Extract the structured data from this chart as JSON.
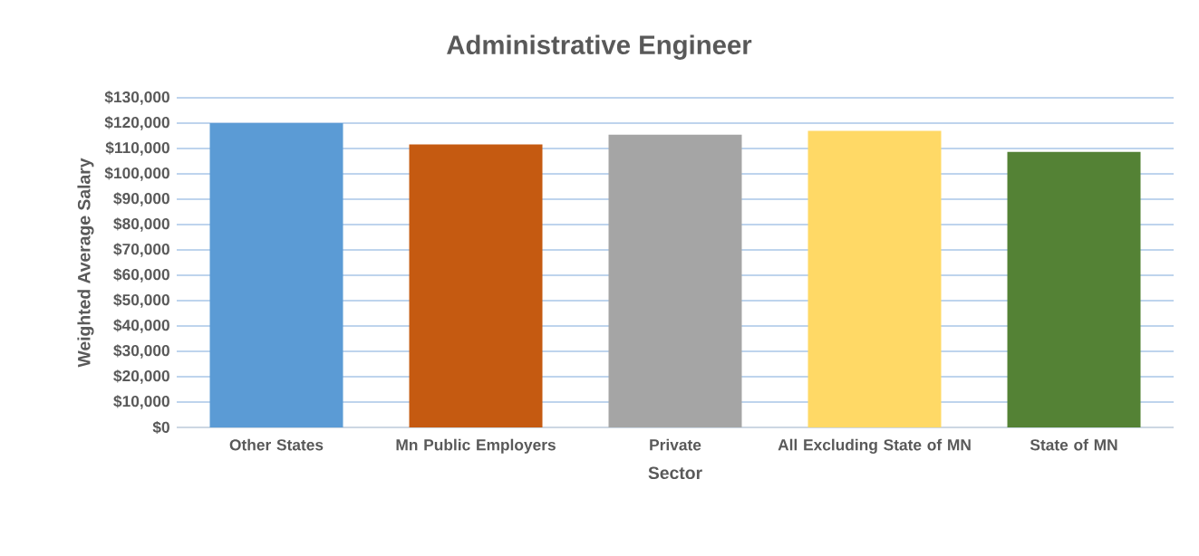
{
  "chart_data": {
    "type": "bar",
    "title": "Administrative Engineer",
    "xlabel": "Sector",
    "ylabel": "Weighted Average Salary",
    "categories": [
      "Other States",
      "Mn Public Employers",
      "Private",
      "All Excluding State of MN",
      "State of MN"
    ],
    "values": [
      120000,
      111600,
      115400,
      117000,
      108700
    ],
    "colors": [
      "#5b9bd5",
      "#c55a11",
      "#a5a5a5",
      "#ffd966",
      "#548235"
    ],
    "ylim": [
      0,
      130000
    ],
    "yticks": [
      {
        "value": 0,
        "label": "$0"
      },
      {
        "value": 10000,
        "label": "$10,000"
      },
      {
        "value": 20000,
        "label": "$20,000"
      },
      {
        "value": 30000,
        "label": "$30,000"
      },
      {
        "value": 40000,
        "label": "$40,000"
      },
      {
        "value": 50000,
        "label": "$50,000"
      },
      {
        "value": 60000,
        "label": "$60,000"
      },
      {
        "value": 70000,
        "label": "$70,000"
      },
      {
        "value": 80000,
        "label": "$80,000"
      },
      {
        "value": 90000,
        "label": "$90,000"
      },
      {
        "value": 100000,
        "label": "$100,000"
      },
      {
        "value": 110000,
        "label": "$110,000"
      },
      {
        "value": 120000,
        "label": "$120,000"
      },
      {
        "value": 130000,
        "label": "$130,000"
      }
    ],
    "grid": "y"
  }
}
